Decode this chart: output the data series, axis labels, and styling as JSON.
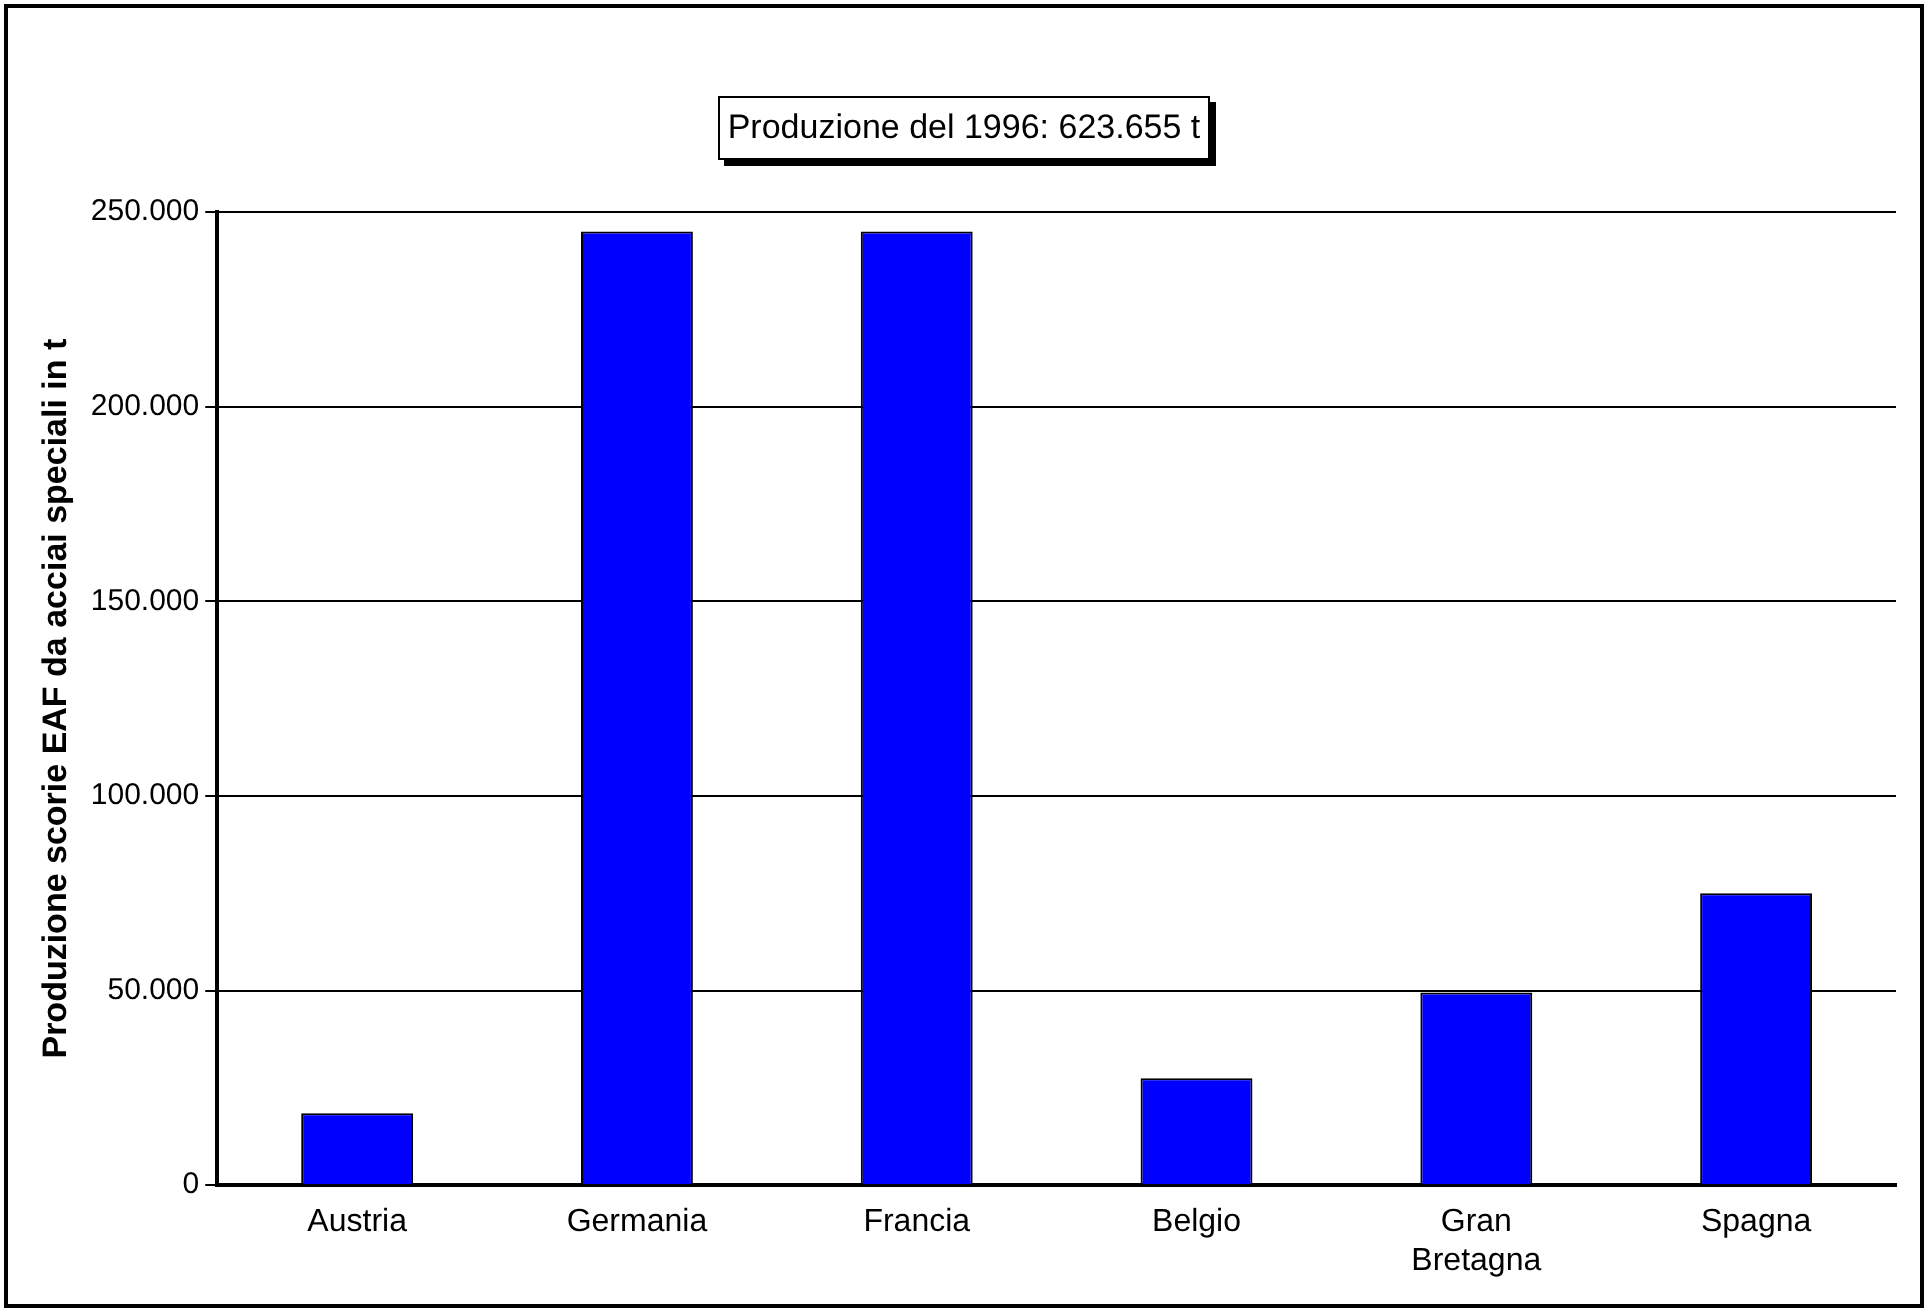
{
  "chart_data": {
    "type": "bar",
    "title": "Produzione del 1996: 623.655 t",
    "ylabel": "Produzione scorie EAF da acciai speciali in t",
    "categories": [
      "Austria",
      "Germania",
      "Francia",
      "Belgio",
      "Gran Bretagna",
      "Spagna"
    ],
    "values": [
      18500,
      245000,
      245000,
      27500,
      49500,
      75000
    ],
    "color": "#0000ff",
    "ylim": [
      0,
      250000
    ],
    "yticks": [
      0,
      {
        "value": 50000,
        "label": "50.000"
      },
      {
        "value": 100000,
        "label": "100.000"
      },
      {
        "value": 150000,
        "label": "150.000"
      },
      {
        "value": 200000,
        "label": "200.000"
      },
      {
        "value": 250000,
        "label": "250.000"
      }
    ],
    "grid": "y",
    "legend": false
  }
}
